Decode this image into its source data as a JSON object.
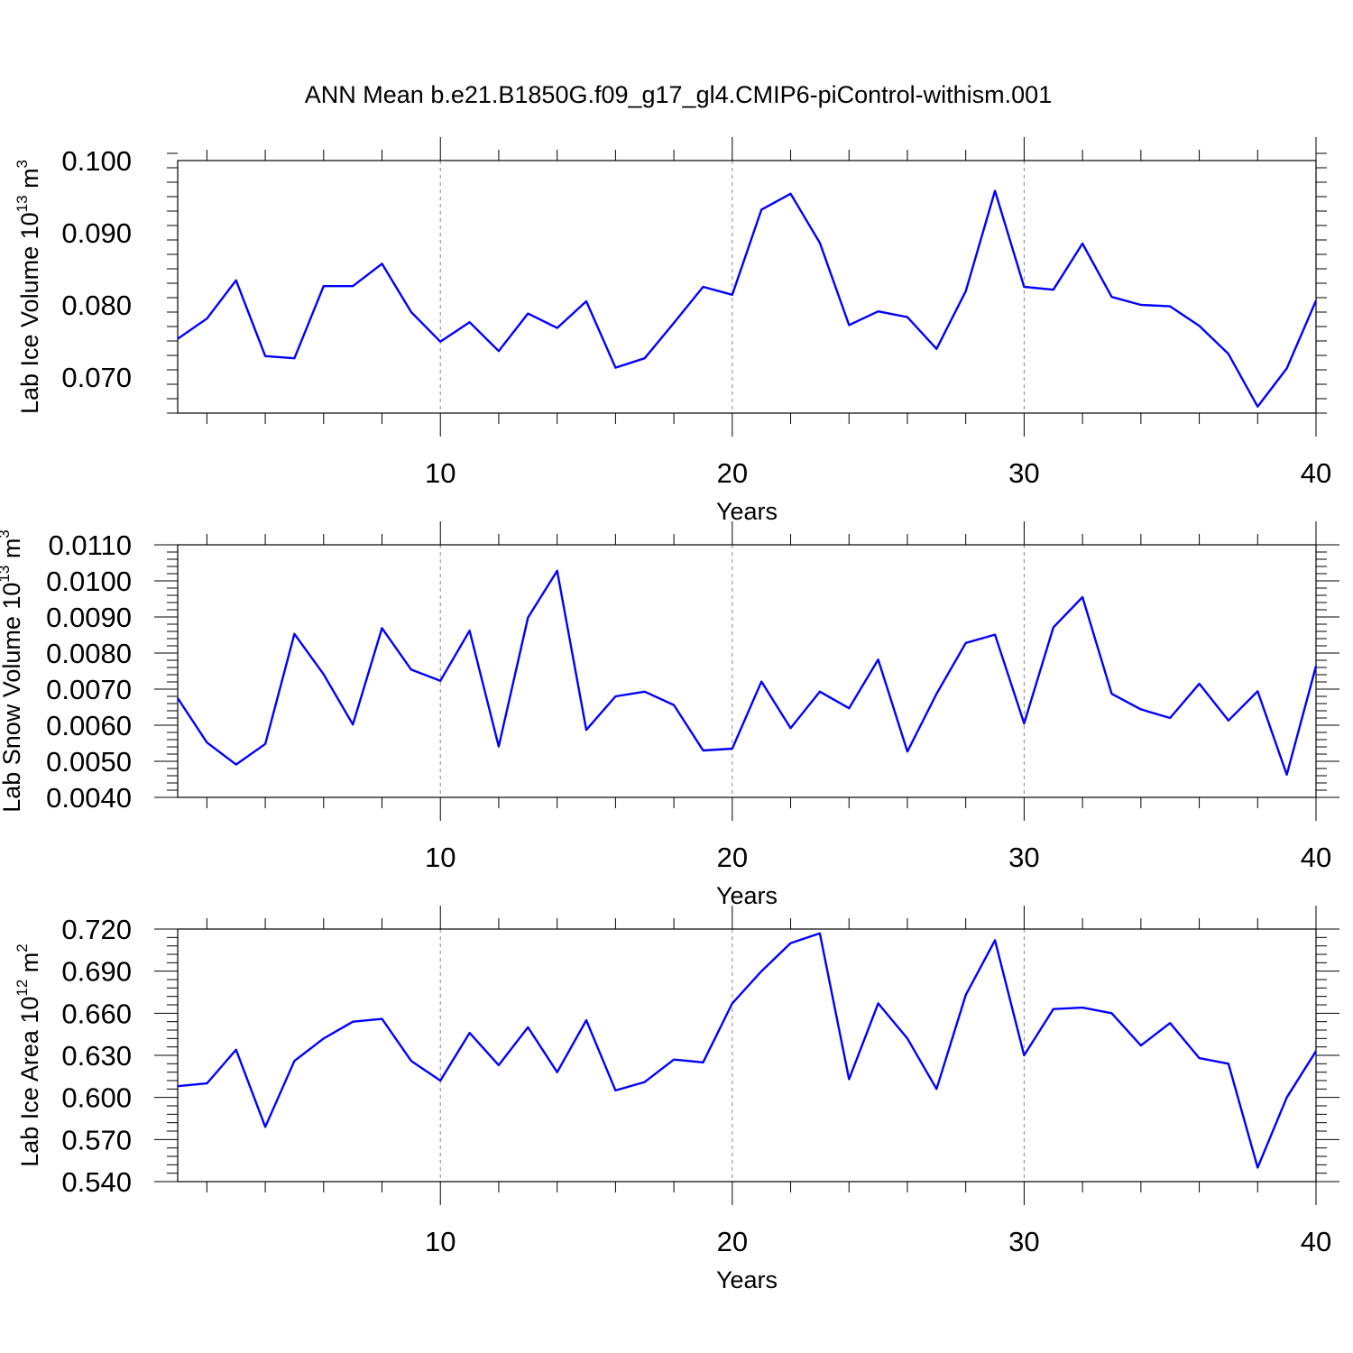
{
  "title": "ANN Mean b.e21.B1850G.f09_g17_gl4.CMIP6-piControl-withism.001",
  "line_color": "#0000ff",
  "chart_data": [
    {
      "type": "line",
      "title": "ANN Mean b.e21.B1850G.f09_g17_gl4.CMIP6-piControl-withism.001",
      "xlabel": "Years",
      "ylabel": "Lab Ice Volume 10",
      "ylabel_exp": "13",
      "ylabel_unit": " m",
      "ylabel_unit_exp": "3",
      "xlim": [
        1,
        40
      ],
      "ylim": [
        0.065,
        0.1
      ],
      "yticks": [
        0.07,
        0.08,
        0.09,
        0.1
      ],
      "ytick_labels": [
        "0.070",
        "0.080",
        "0.090",
        "0.100"
      ],
      "xticks": [
        10,
        20,
        30,
        40
      ],
      "xtick_labels": [
        "10",
        "20",
        "30",
        "40"
      ],
      "grid_x": [
        10,
        20,
        30
      ],
      "x": [
        1,
        2,
        3,
        4,
        5,
        6,
        7,
        8,
        9,
        10,
        11,
        12,
        13,
        14,
        15,
        16,
        17,
        18,
        19,
        20,
        21,
        22,
        23,
        24,
        25,
        26,
        27,
        28,
        29,
        30,
        31,
        32,
        33,
        34,
        35,
        36,
        37,
        38,
        39,
        40
      ],
      "series": [
        {
          "values": [
            0.0753,
            0.0781,
            0.0834,
            0.0729,
            0.0726,
            0.0826,
            0.0826,
            0.0857,
            0.079,
            0.0749,
            0.0776,
            0.0736,
            0.0788,
            0.0768,
            0.0805,
            0.0713,
            0.0726,
            0.0775,
            0.0825,
            0.0814,
            0.0932,
            0.0954,
            0.0886,
            0.0772,
            0.0791,
            0.0783,
            0.0739,
            0.0819,
            0.0958,
            0.0825,
            0.0821,
            0.0885,
            0.0811,
            0.08,
            0.0798,
            0.0771,
            0.0732,
            0.0659,
            0.0712,
            0.0806
          ]
        }
      ]
    },
    {
      "type": "line",
      "xlabel": "Years",
      "ylabel": "Lab Snow Volume 10",
      "ylabel_exp": "13",
      "ylabel_unit": " m",
      "ylabel_unit_exp": "3",
      "xlim": [
        1,
        40
      ],
      "ylim": [
        0.004,
        0.011
      ],
      "yticks": [
        0.004,
        0.005,
        0.006,
        0.007,
        0.008,
        0.009,
        0.01,
        0.011
      ],
      "ytick_labels": [
        "0.0040",
        "0.0050",
        "0.0060",
        "0.0070",
        "0.0080",
        "0.0090",
        "0.0100",
        "0.0110"
      ],
      "xticks": [
        10,
        20,
        30,
        40
      ],
      "xtick_labels": [
        "10",
        "20",
        "30",
        "40"
      ],
      "grid_x": [
        10,
        20,
        30
      ],
      "x": [
        1,
        2,
        3,
        4,
        5,
        6,
        7,
        8,
        9,
        10,
        11,
        12,
        13,
        14,
        15,
        16,
        17,
        18,
        19,
        20,
        21,
        22,
        23,
        24,
        25,
        26,
        27,
        28,
        29,
        30,
        31,
        32,
        33,
        34,
        35,
        36,
        37,
        38,
        39,
        40
      ],
      "series": [
        {
          "values": [
            0.00675,
            0.00552,
            0.00491,
            0.00548,
            0.00853,
            0.00741,
            0.00602,
            0.00869,
            0.00754,
            0.00723,
            0.00862,
            0.00541,
            0.00898,
            0.01028,
            0.00587,
            0.0068,
            0.00693,
            0.00656,
            0.0053,
            0.00535,
            0.00721,
            0.00592,
            0.00693,
            0.00647,
            0.00782,
            0.00527,
            0.00687,
            0.00828,
            0.00851,
            0.00605,
            0.00871,
            0.00955,
            0.00687,
            0.00644,
            0.0062,
            0.00715,
            0.00613,
            0.00694,
            0.00463,
            0.00764
          ]
        }
      ]
    },
    {
      "type": "line",
      "xlabel": "Years",
      "ylabel": "Lab Ice Area 10",
      "ylabel_exp": "12",
      "ylabel_unit": " m",
      "ylabel_unit_exp": "2",
      "xlim": [
        1,
        40
      ],
      "ylim": [
        0.54,
        0.72
      ],
      "yticks": [
        0.54,
        0.57,
        0.6,
        0.63,
        0.66,
        0.69,
        0.72
      ],
      "ytick_labels": [
        "0.540",
        "0.570",
        "0.600",
        "0.630",
        "0.660",
        "0.690",
        "0.720"
      ],
      "xticks": [
        10,
        20,
        30,
        40
      ],
      "xtick_labels": [
        "10",
        "20",
        "30",
        "40"
      ],
      "grid_x": [
        10,
        20,
        30
      ],
      "x": [
        1,
        2,
        3,
        4,
        5,
        6,
        7,
        8,
        9,
        10,
        11,
        12,
        13,
        14,
        15,
        16,
        17,
        18,
        19,
        20,
        21,
        22,
        23,
        24,
        25,
        26,
        27,
        28,
        29,
        30,
        31,
        32,
        33,
        34,
        35,
        36,
        37,
        38,
        39,
        40
      ],
      "series": [
        {
          "values": [
            0.608,
            0.61,
            0.634,
            0.579,
            0.626,
            0.642,
            0.654,
            0.656,
            0.626,
            0.612,
            0.646,
            0.623,
            0.65,
            0.618,
            0.655,
            0.605,
            0.611,
            0.627,
            0.625,
            0.667,
            0.69,
            0.71,
            0.717,
            0.613,
            0.667,
            0.642,
            0.606,
            0.673,
            0.712,
            0.63,
            0.663,
            0.664,
            0.66,
            0.637,
            0.653,
            0.628,
            0.624,
            0.55,
            0.6,
            0.633
          ]
        }
      ]
    }
  ]
}
